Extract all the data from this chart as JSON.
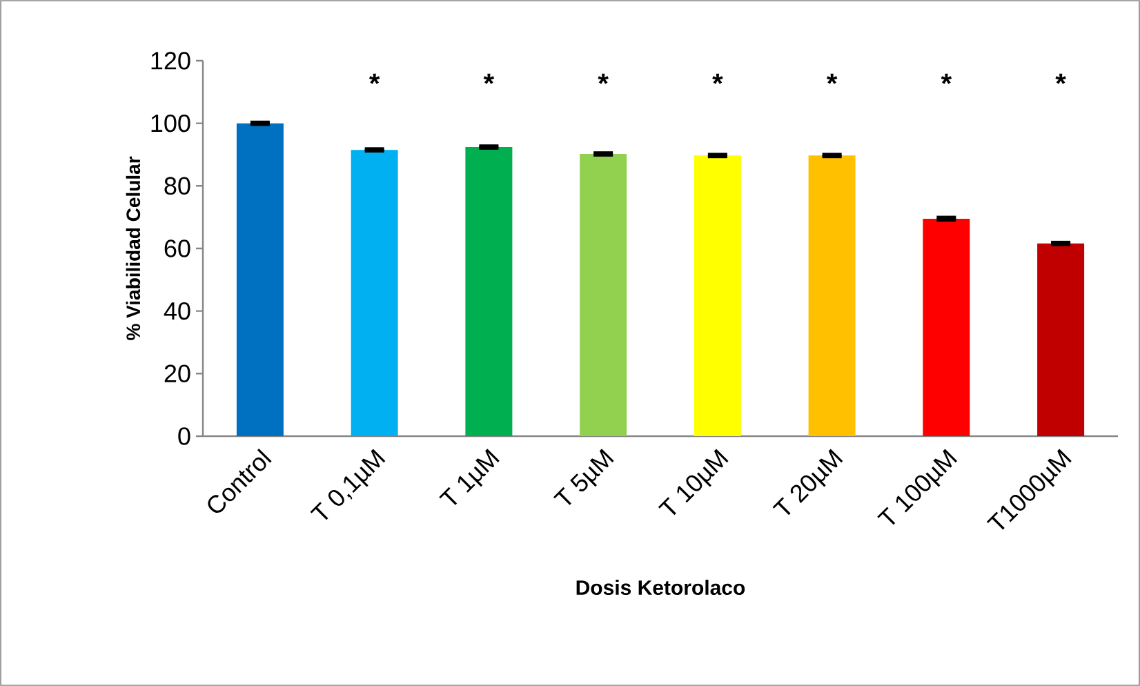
{
  "chart_data": {
    "type": "bar",
    "xlabel": "Dosis Ketorolaco",
    "ylabel": "% Viabilidad Celular",
    "categories": [
      "Control",
      "T 0,1µM",
      "T 1µM",
      "T 5µM",
      "T 10µM",
      "T 20µM",
      "T 100µM",
      "T1000µM"
    ],
    "values": [
      100,
      91.5,
      92.4,
      90.2,
      89.7,
      89.7,
      69.5,
      61.6
    ],
    "errors": [
      0.3,
      0.3,
      0.3,
      0.3,
      0.3,
      0.3,
      0.4,
      0.3
    ],
    "colors": [
      "#0070c0",
      "#00b0f0",
      "#00b050",
      "#92d050",
      "#ffff00",
      "#ffc000",
      "#ff0000",
      "#c00000"
    ],
    "ylim": [
      0,
      120
    ],
    "yticks": [
      0,
      20,
      40,
      60,
      80,
      100,
      120
    ],
    "annotations": [
      "*",
      "*",
      "*",
      "*",
      "*",
      "*",
      "*"
    ]
  }
}
